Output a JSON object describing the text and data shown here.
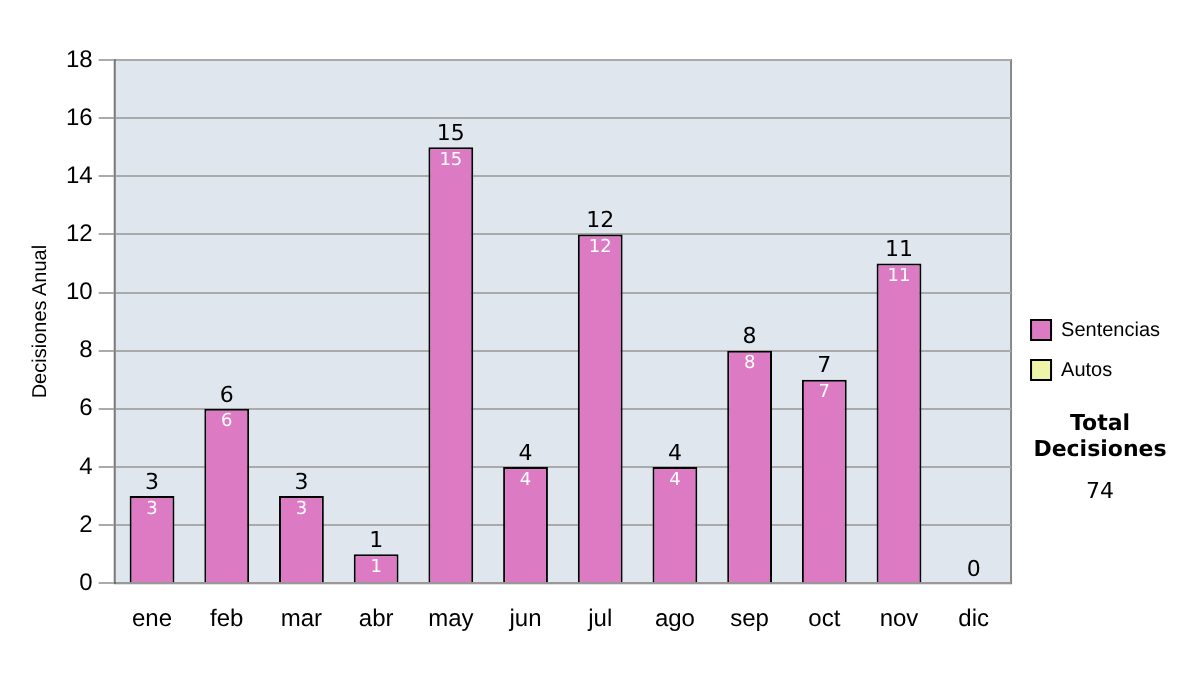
{
  "chart_data": {
    "type": "bar",
    "stacked": true,
    "ylabel": "Decisiones Anual",
    "categories": [
      "ene",
      "feb",
      "mar",
      "abr",
      "may",
      "jun",
      "jul",
      "ago",
      "sep",
      "oct",
      "nov",
      "dic"
    ],
    "series": [
      {
        "name": "Sentencias",
        "color": "#dc7ac4",
        "values": [
          3,
          6,
          3,
          1,
          15,
          4,
          12,
          4,
          8,
          7,
          11,
          0
        ],
        "value_labels": [
          "3",
          "6",
          "3",
          "1",
          "15",
          "4",
          "12",
          "4",
          "8",
          "7",
          "11",
          null
        ]
      },
      {
        "name": "Autos",
        "color": "#eef5a8",
        "values": [
          null,
          null,
          null,
          null,
          null,
          null,
          null,
          null,
          null,
          null,
          null,
          null
        ]
      }
    ],
    "ylim": [
      0,
      18
    ],
    "yticks": [
      0,
      2,
      4,
      6,
      8,
      10,
      12,
      14,
      16,
      18
    ],
    "grid": "y",
    "legend": "right",
    "totals": [
      "3",
      "6",
      "3",
      "1",
      "15",
      "4",
      "12",
      "4",
      "8",
      "7",
      "11",
      "0"
    ],
    "annotations": [
      "Total Decisiones",
      "74"
    ]
  }
}
